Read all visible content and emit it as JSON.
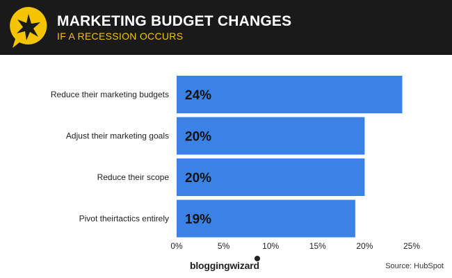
{
  "header": {
    "title": "MARKETING BUDGET CHANGES",
    "subtitle": "IF A RECESSION OCCURS",
    "logo_icon": "star-speech-bubble-icon"
  },
  "chart_data": {
    "type": "bar",
    "orientation": "horizontal",
    "categories": [
      "Reduce their marketing budgets",
      "Adjust their marketing goals",
      "Reduce their scope",
      "Pivot theirtactics entirely"
    ],
    "values": [
      24,
      20,
      20,
      19
    ],
    "data_labels": [
      "24%",
      "20%",
      "20%",
      "19%"
    ],
    "xlim": [
      0,
      25
    ],
    "xticks": [
      0,
      5,
      10,
      15,
      20,
      25
    ],
    "xtick_labels": [
      "0%",
      "5%",
      "10%",
      "15%",
      "20%",
      "25%"
    ],
    "bar_color": "#3b82e6",
    "grid": false
  },
  "footer": {
    "brand": "bloggingwizard",
    "source": "Source: HubSpot"
  },
  "colors": {
    "header_bg": "#1a1a1a",
    "accent": "#f5c400",
    "bar": "#3b82e6"
  }
}
